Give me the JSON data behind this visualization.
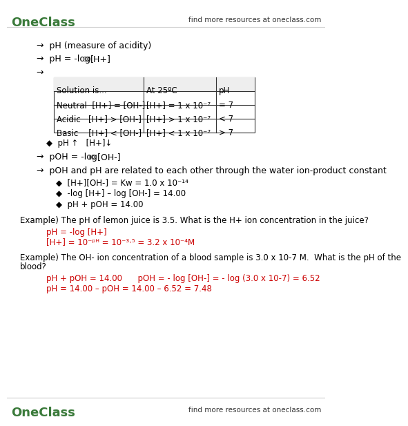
{
  "bg_color": "#ffffff",
  "header_color": "#f0f0f0",
  "black": "#000000",
  "red": "#cc0000",
  "gray": "#555555",
  "green": "#3a7a3a",
  "logo_text": "OneClass",
  "header_right": "find more resources at oneclass.com",
  "footer_right": "find more resources at oneclass.com",
  "bullet_arrow": "→",
  "bullet_diamond": "◆",
  "line1": "pH (measure of acidity)",
  "table_headers": [
    "Solution is...",
    "At 25ºC",
    "pH"
  ],
  "table_rows": [
    [
      "Neutral  [H+] = [OH-]",
      "[H+] = 1 x 10⁻⁷",
      "= 7"
    ],
    [
      "Acidic   [H+] > [OH-]",
      "[H+] > 1 x 10⁻⁷",
      "< 7"
    ],
    [
      "Basic    [H+] < [OH-]",
      "[H+] < 1 x 10⁻⁷",
      "> 7"
    ]
  ],
  "related_line": "pOH and pH are related to each other through the water ion-product constant",
  "sub_bullet1": "[H+][OH-] = Kw = 1.0 x 10⁻¹⁴",
  "sub_bullet2": "-log [H+] – log [OH-] = 14.00",
  "sub_bullet3": "pH + pOH = 14.00",
  "example1": "Example) The pH of lemon juice is 3.5. What is the H+ ion concentration in the juice?",
  "ex1_red1": "pH = -log [H+]",
  "ex1_red2": "[H+] = 10⁻ᵖᴴ = 10⁻³⋅⁵ = 3.2 x 10⁻⁴M",
  "example2_line1": "Example) The OH- ion concentration of a blood sample is 3.0 x 10-7 M.  What is the pH of the",
  "example2_line2": "blood?",
  "ex2_red1": "pH + pOH = 14.00      pOH = - log [OH-] = - log (3.0 x 10-7) = 6.52",
  "ex2_red2": "pH = 14.00 – pOH = 14.00 – 6.52 = 7.48"
}
